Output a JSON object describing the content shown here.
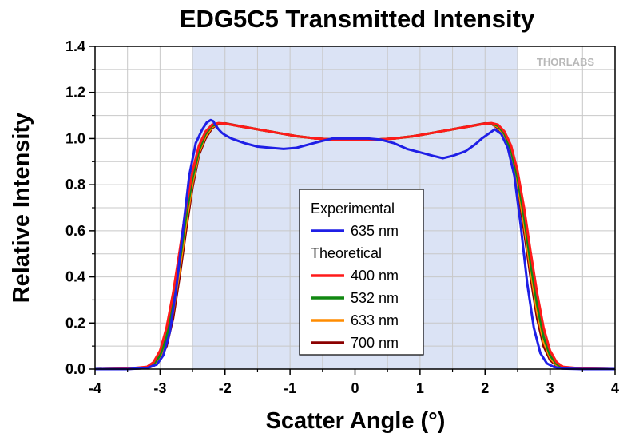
{
  "chart_data": {
    "type": "line",
    "title": "EDG5C5 Transmitted Intensity",
    "xlabel": "Scatter Angle (°)",
    "ylabel": "Relative Intensity",
    "xlim": [
      -4,
      4
    ],
    "ylim": [
      0,
      1.4
    ],
    "xticks": [
      "-4",
      "-3",
      "-2",
      "-1",
      "0",
      "1",
      "2",
      "3",
      "4"
    ],
    "yticks": [
      "0.0",
      "0.2",
      "0.4",
      "0.6",
      "0.8",
      "1.0",
      "1.2",
      "1.4"
    ],
    "grid": true,
    "shaded_region": {
      "x": [
        -2.5,
        2.5
      ],
      "color": "#dbe3f5"
    },
    "legend": {
      "placement": "center-bottom",
      "groups": [
        {
          "heading": "Experimental",
          "entries": [
            "635 nm"
          ]
        },
        {
          "heading": "Theoretical",
          "entries": [
            "400 nm",
            "532 nm",
            "633 nm",
            "700 nm"
          ]
        }
      ]
    },
    "logo": "THORLABS",
    "series": [
      {
        "name": "635 nm",
        "group": "Experimental",
        "color": "#1f1fe6",
        "x": [
          -4,
          -3.5,
          -3.2,
          -3.05,
          -2.95,
          -2.85,
          -2.75,
          -2.65,
          -2.55,
          -2.45,
          -2.35,
          -2.28,
          -2.22,
          -2.18,
          -2.15,
          -2.1,
          -2.05,
          -2.0,
          -1.9,
          -1.7,
          -1.5,
          -1.3,
          -1.1,
          -0.9,
          -0.7,
          -0.5,
          -0.35,
          -0.2,
          0,
          0.2,
          0.4,
          0.6,
          0.8,
          1.0,
          1.2,
          1.35,
          1.5,
          1.7,
          1.85,
          1.95,
          2.05,
          2.15,
          2.25,
          2.35,
          2.45,
          2.55,
          2.65,
          2.75,
          2.85,
          2.95,
          3.05,
          3.2,
          3.5,
          4
        ],
        "y": [
          0,
          0,
          0.005,
          0.02,
          0.06,
          0.16,
          0.35,
          0.6,
          0.84,
          0.98,
          1.04,
          1.07,
          1.08,
          1.075,
          1.06,
          1.04,
          1.025,
          1.015,
          1.0,
          0.98,
          0.965,
          0.96,
          0.955,
          0.96,
          0.975,
          0.99,
          1.0,
          1.0,
          1.0,
          1.0,
          0.995,
          0.98,
          0.955,
          0.94,
          0.925,
          0.915,
          0.925,
          0.945,
          0.975,
          1.0,
          1.02,
          1.04,
          1.02,
          0.96,
          0.84,
          0.62,
          0.37,
          0.18,
          0.07,
          0.025,
          0.01,
          0.002,
          0,
          0
        ]
      },
      {
        "name": "400 nm",
        "group": "Theoretical",
        "color": "#ff1a1a",
        "x": [
          -4,
          -3.5,
          -3.2,
          -3.1,
          -3.0,
          -2.9,
          -2.8,
          -2.7,
          -2.6,
          -2.5,
          -2.4,
          -2.3,
          -2.2,
          -2.1,
          -2.0,
          -1.8,
          -1.5,
          -1.2,
          -0.9,
          -0.6,
          -0.3,
          0,
          0.3,
          0.6,
          0.9,
          1.2,
          1.5,
          1.8,
          2.0,
          2.1,
          2.2,
          2.3,
          2.4,
          2.5,
          2.6,
          2.7,
          2.8,
          2.9,
          3.0,
          3.1,
          3.2,
          3.5,
          4
        ],
        "y": [
          0,
          0.002,
          0.01,
          0.03,
          0.08,
          0.18,
          0.33,
          0.51,
          0.7,
          0.86,
          0.97,
          1.03,
          1.06,
          1.067,
          1.065,
          1.055,
          1.04,
          1.025,
          1.01,
          1.0,
          0.995,
          0.995,
          0.995,
          1.0,
          1.01,
          1.025,
          1.04,
          1.055,
          1.065,
          1.067,
          1.06,
          1.03,
          0.97,
          0.86,
          0.7,
          0.51,
          0.33,
          0.18,
          0.08,
          0.03,
          0.01,
          0.002,
          0
        ]
      },
      {
        "name": "532 nm",
        "group": "Theoretical",
        "color": "#118811",
        "x": [
          -4,
          -3.5,
          -3.2,
          -3.1,
          -3.0,
          -2.9,
          -2.8,
          -2.7,
          -2.6,
          -2.5,
          -2.4,
          -2.3,
          -2.2,
          -2.1,
          -2.0,
          -1.8,
          -1.5,
          -1.2,
          -0.9,
          -0.6,
          -0.3,
          0,
          0.3,
          0.6,
          0.9,
          1.2,
          1.5,
          1.8,
          2.0,
          2.1,
          2.2,
          2.3,
          2.4,
          2.5,
          2.6,
          2.7,
          2.8,
          2.9,
          3.0,
          3.1,
          3.2,
          3.5,
          4
        ],
        "y": [
          0,
          0.001,
          0.007,
          0.022,
          0.06,
          0.14,
          0.28,
          0.46,
          0.66,
          0.83,
          0.95,
          1.02,
          1.055,
          1.066,
          1.065,
          1.055,
          1.04,
          1.025,
          1.01,
          1.0,
          0.995,
          0.995,
          0.995,
          1.0,
          1.01,
          1.025,
          1.04,
          1.055,
          1.065,
          1.066,
          1.055,
          1.02,
          0.95,
          0.83,
          0.66,
          0.46,
          0.28,
          0.14,
          0.06,
          0.022,
          0.007,
          0.001,
          0
        ]
      },
      {
        "name": "633 nm",
        "group": "Theoretical",
        "color": "#ff8c00",
        "x": [
          -4,
          -3.5,
          -3.2,
          -3.1,
          -3.0,
          -2.9,
          -2.8,
          -2.7,
          -2.6,
          -2.5,
          -2.4,
          -2.3,
          -2.2,
          -2.1,
          -2.0,
          -1.8,
          -1.5,
          -1.2,
          -0.9,
          -0.6,
          -0.3,
          0,
          0.3,
          0.6,
          0.9,
          1.2,
          1.5,
          1.8,
          2.0,
          2.1,
          2.2,
          2.3,
          2.4,
          2.5,
          2.6,
          2.7,
          2.8,
          2.9,
          3.0,
          3.1,
          3.2,
          3.5,
          4
        ],
        "y": [
          0,
          0.001,
          0.005,
          0.017,
          0.05,
          0.12,
          0.25,
          0.43,
          0.63,
          0.81,
          0.94,
          1.01,
          1.05,
          1.065,
          1.065,
          1.055,
          1.04,
          1.025,
          1.01,
          1.0,
          0.995,
          0.995,
          0.995,
          1.0,
          1.01,
          1.025,
          1.04,
          1.055,
          1.065,
          1.065,
          1.05,
          1.01,
          0.94,
          0.81,
          0.63,
          0.43,
          0.25,
          0.12,
          0.05,
          0.017,
          0.005,
          0.001,
          0
        ]
      },
      {
        "name": "700 nm",
        "group": "Theoretical",
        "color": "#8b0000",
        "x": [
          -4,
          -3.5,
          -3.2,
          -3.1,
          -3.0,
          -2.9,
          -2.8,
          -2.7,
          -2.6,
          -2.5,
          -2.4,
          -2.3,
          -2.2,
          -2.1,
          -2.0,
          -1.8,
          -1.5,
          -1.2,
          -0.9,
          -0.6,
          -0.3,
          0,
          0.3,
          0.6,
          0.9,
          1.2,
          1.5,
          1.8,
          2.0,
          2.1,
          2.2,
          2.3,
          2.4,
          2.5,
          2.6,
          2.7,
          2.8,
          2.9,
          3.0,
          3.1,
          3.2,
          3.5,
          4
        ],
        "y": [
          0,
          0.001,
          0.004,
          0.014,
          0.04,
          0.1,
          0.22,
          0.4,
          0.6,
          0.79,
          0.93,
          1.0,
          1.045,
          1.064,
          1.066,
          1.056,
          1.04,
          1.025,
          1.01,
          1.0,
          0.995,
          0.995,
          0.995,
          1.0,
          1.01,
          1.025,
          1.04,
          1.056,
          1.066,
          1.064,
          1.045,
          1.0,
          0.93,
          0.79,
          0.6,
          0.4,
          0.22,
          0.1,
          0.04,
          0.014,
          0.004,
          0.001,
          0
        ]
      }
    ]
  }
}
